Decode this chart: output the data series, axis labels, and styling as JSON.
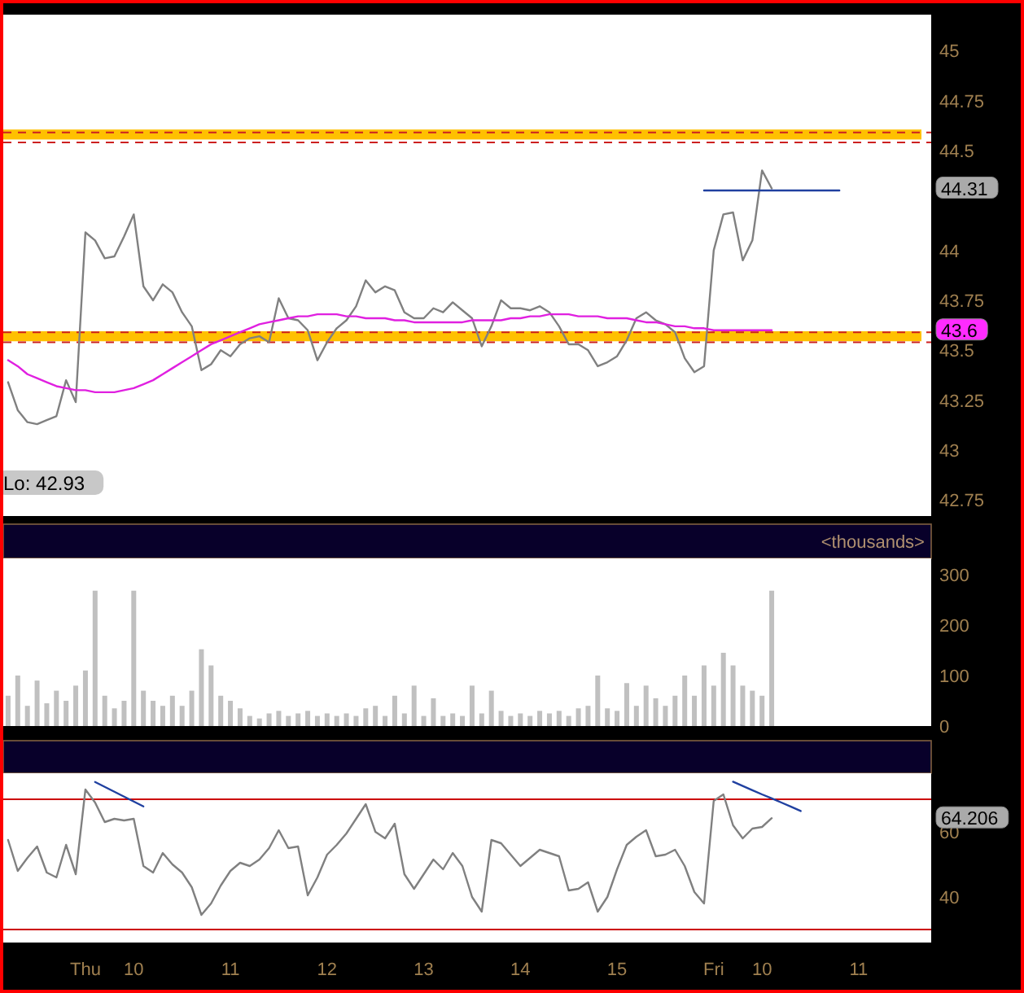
{
  "chart_data": [
    {
      "type": "line",
      "ylim": [
        42.67,
        45.18
      ],
      "tick_labels": "y",
      "categories": [
        null,
        null,
        null,
        null,
        null,
        null,
        null,
        null,
        null,
        null,
        null,
        null,
        null,
        null,
        null,
        null,
        null,
        null,
        null,
        null,
        null,
        null,
        null,
        null,
        null,
        null,
        null,
        null,
        null,
        null,
        null,
        null,
        null,
        null,
        null,
        null,
        null,
        null,
        null,
        null,
        null,
        null,
        null,
        null,
        null,
        null,
        null,
        null,
        null,
        null,
        null,
        null,
        null,
        null,
        null,
        null,
        null,
        null,
        null,
        null,
        null,
        null,
        null,
        null,
        null,
        null,
        null,
        null,
        null,
        null,
        null,
        null,
        null,
        null,
        null,
        null,
        null,
        null,
        null,
        null,
        null,
        null,
        null,
        null,
        null,
        null,
        null,
        null,
        null,
        null,
        null,
        null,
        null,
        null,
        null,
        null
      ],
      "yticks": [
        42.75,
        43,
        43.25,
        43.5,
        43.75,
        44,
        44.5,
        44.75,
        45
      ],
      "series": [
        {
          "color": "#808080",
          "values": [
            43.34,
            43.2,
            43.14,
            43.13,
            43.15,
            43.17,
            43.35,
            43.24,
            44.09,
            44.05,
            43.96,
            43.97,
            44.07,
            44.18,
            43.82,
            43.75,
            43.83,
            43.79,
            43.69,
            43.62,
            43.4,
            43.43,
            43.5,
            43.47,
            43.53,
            43.56,
            43.57,
            43.54,
            43.76,
            43.66,
            43.65,
            43.6,
            43.45,
            43.54,
            43.61,
            43.65,
            43.72,
            43.85,
            43.79,
            43.82,
            43.8,
            43.69,
            43.66,
            43.66,
            43.71,
            43.69,
            43.74,
            43.7,
            43.66,
            43.52,
            43.62,
            43.75,
            43.71,
            43.71,
            43.7,
            43.72,
            43.69,
            43.62,
            43.53,
            43.53,
            43.5,
            43.42,
            43.44,
            43.47,
            43.55,
            43.66,
            43.69,
            43.65,
            43.63,
            43.59,
            43.46,
            43.39,
            43.42,
            44.0,
            44.18,
            44.19,
            43.95,
            44.05,
            44.4,
            44.31,
            null,
            null,
            null,
            null,
            null,
            null,
            null,
            null,
            null,
            null,
            null,
            null,
            null,
            null,
            null,
            null
          ]
        },
        {
          "color": "#e020e0",
          "values": [
            43.45,
            43.42,
            43.38,
            43.36,
            43.34,
            43.32,
            43.31,
            43.3,
            43.3,
            43.29,
            43.29,
            43.29,
            43.3,
            43.31,
            43.33,
            43.35,
            43.38,
            43.41,
            43.44,
            43.47,
            43.5,
            43.53,
            43.55,
            43.57,
            43.59,
            43.61,
            43.63,
            43.64,
            43.65,
            43.66,
            43.67,
            43.67,
            43.68,
            43.68,
            43.68,
            43.67,
            43.67,
            43.66,
            43.66,
            43.66,
            43.65,
            43.65,
            43.64,
            43.64,
            43.64,
            43.64,
            43.64,
            43.64,
            43.65,
            43.65,
            43.65,
            43.65,
            43.66,
            43.66,
            43.67,
            43.67,
            43.68,
            43.68,
            43.68,
            43.67,
            43.67,
            43.67,
            43.66,
            43.66,
            43.66,
            43.65,
            43.64,
            43.64,
            43.63,
            43.62,
            43.62,
            43.61,
            43.61,
            43.6,
            43.6,
            43.6,
            43.6,
            43.6,
            43.6,
            43.6,
            null,
            null,
            null,
            null,
            null,
            null,
            null,
            null,
            null,
            null,
            null,
            null,
            null,
            null,
            null,
            null
          ]
        },
        {
          "color": "#2040a0",
          "values": [
            null,
            null,
            null,
            null,
            null,
            null,
            null,
            null,
            null,
            null,
            null,
            null,
            null,
            null,
            null,
            null,
            null,
            null,
            null,
            null,
            null,
            null,
            null,
            null,
            null,
            null,
            null,
            null,
            null,
            null,
            null,
            null,
            null,
            null,
            null,
            null,
            null,
            null,
            null,
            null,
            null,
            null,
            null,
            null,
            null,
            null,
            null,
            null,
            null,
            null,
            null,
            null,
            null,
            null,
            null,
            null,
            null,
            null,
            null,
            null,
            null,
            null,
            null,
            null,
            null,
            null,
            null,
            null,
            null,
            null,
            null,
            null,
            44.3,
            44.3,
            44.3,
            44.3,
            44.3,
            44.3,
            44.3,
            44.3,
            44.3,
            44.3,
            44.3,
            44.3,
            44.3,
            44.3,
            44.3,
            null,
            null,
            null,
            null,
            null,
            null,
            null,
            null,
            null
          ]
        }
      ],
      "bands": [
        {
          "axis": "y",
          "from": 44.555,
          "to": 44.605,
          "color": "#ffc000"
        },
        {
          "axis": "y",
          "from": 43.545,
          "to": 43.595,
          "color": "#ffc000"
        }
      ],
      "ref_lines": [
        {
          "axis": "y",
          "value": 44.59,
          "color": "#cc2020",
          "line_style": "dashed"
        },
        {
          "axis": "y",
          "value": 44.54,
          "color": "#cc2020",
          "line_style": "dashed"
        },
        {
          "axis": "y",
          "value": 43.59,
          "color": "#cc2020",
          "line_style": "dashed"
        },
        {
          "axis": "y",
          "value": 43.54,
          "color": "#cc2020",
          "line_style": "dashed"
        }
      ],
      "annotations": [
        "44.31",
        "43.6",
        "Lo: 42.93"
      ]
    },
    {
      "type": "bar",
      "ylim": [
        0,
        332
      ],
      "yticks": [
        0,
        100,
        200,
        300
      ],
      "tick_labels": "y",
      "ylabel": "<thousands>",
      "color": "#c0c0c0",
      "categories": [
        null,
        null,
        null,
        null,
        null,
        null,
        null,
        null,
        null,
        null,
        null,
        null,
        null,
        null,
        null,
        null,
        null,
        null,
        null,
        null,
        null,
        null,
        null,
        null,
        null,
        null,
        null,
        null,
        null,
        null,
        null,
        null,
        null,
        null,
        null,
        null,
        null,
        null,
        null,
        null,
        null,
        null,
        null,
        null,
        null,
        null,
        null,
        null,
        null,
        null,
        null,
        null,
        null,
        null,
        null,
        null,
        null,
        null,
        null,
        null,
        null,
        null,
        null,
        null,
        null,
        null,
        null,
        null,
        null,
        null,
        null,
        null,
        null,
        null,
        null,
        null,
        null,
        null,
        null,
        null,
        null,
        null,
        null,
        null,
        null,
        null,
        null,
        null,
        null,
        null,
        null,
        null,
        null,
        null,
        null,
        null
      ],
      "values": [
        60,
        100,
        40,
        90,
        45,
        70,
        50,
        80,
        110,
        268,
        60,
        35,
        50,
        268,
        70,
        50,
        40,
        60,
        40,
        70,
        152,
        120,
        60,
        50,
        35,
        20,
        15,
        25,
        30,
        20,
        25,
        30,
        20,
        25,
        20,
        25,
        20,
        35,
        40,
        20,
        60,
        25,
        80,
        20,
        55,
        20,
        25,
        20,
        80,
        25,
        70,
        30,
        20,
        25,
        20,
        30,
        25,
        30,
        20,
        35,
        40,
        100,
        35,
        30,
        85,
        40,
        80,
        55,
        40,
        60,
        100,
        60,
        120,
        80,
        145,
        120,
        80,
        70,
        60,
        268,
        null,
        null,
        null,
        null,
        null,
        null,
        null,
        null,
        null,
        null,
        null,
        null,
        null,
        null,
        null,
        null
      ]
    },
    {
      "type": "line",
      "ylim": [
        26,
        78
      ],
      "yticks": [
        40,
        60
      ],
      "categories": [
        null,
        null,
        null,
        null,
        null,
        null,
        null,
        null,
        "Thu",
        null,
        null,
        null,
        null,
        "10",
        null,
        null,
        null,
        null,
        null,
        null,
        null,
        null,
        null,
        "11",
        null,
        null,
        null,
        null,
        null,
        null,
        null,
        null,
        null,
        "12",
        null,
        null,
        null,
        null,
        null,
        null,
        null,
        null,
        null,
        "13",
        null,
        null,
        null,
        null,
        null,
        null,
        null,
        null,
        null,
        "14",
        null,
        null,
        null,
        null,
        null,
        null,
        null,
        null,
        null,
        "15",
        null,
        null,
        null,
        null,
        null,
        null,
        null,
        null,
        null,
        "Fri",
        null,
        null,
        null,
        null,
        "10",
        null,
        null,
        null,
        null,
        null,
        null,
        null,
        null,
        null,
        "11",
        null,
        null,
        null,
        null,
        null,
        null,
        null
      ],
      "series": [
        {
          "color": "#808080",
          "values": [
            57.5,
            48,
            52,
            55.5,
            47.5,
            46,
            56,
            47,
            73,
            69,
            63,
            64,
            63.5,
            64,
            49.5,
            47.5,
            53.5,
            50,
            47.5,
            43,
            34.5,
            38,
            43.5,
            48,
            50.5,
            49.5,
            51.5,
            55,
            60.5,
            55,
            55.5,
            40.5,
            46,
            53,
            56,
            59.5,
            64,
            68.5,
            60,
            58,
            62.5,
            47,
            42.5,
            47,
            51.5,
            48.5,
            53.5,
            49.5,
            40,
            35.5,
            57.5,
            56.5,
            53,
            49.5,
            52,
            54.5,
            53.5,
            52.5,
            42,
            42.5,
            44.5,
            35.5,
            40,
            48.5,
            56,
            58.5,
            60.5,
            52.5,
            53,
            54.5,
            49.5,
            41.5,
            38,
            69.5,
            71.5,
            62,
            58,
            61,
            61.5,
            64.2,
            null,
            null,
            null,
            null,
            null,
            null,
            null,
            null,
            null,
            null,
            null,
            null,
            null,
            null,
            null,
            null
          ]
        },
        {
          "color": "#2040a0",
          "values": [
            null,
            null,
            null,
            null,
            null,
            null,
            null,
            null,
            null,
            75.3,
            73.8,
            72.3,
            70.8,
            69.3,
            67.8,
            null,
            null,
            null,
            null,
            null,
            null,
            null,
            null,
            null,
            null,
            null,
            null,
            null,
            null,
            null,
            null,
            null,
            null,
            null,
            null,
            null,
            null,
            null,
            null,
            null,
            null,
            null,
            null,
            null,
            null,
            null,
            null,
            null,
            null,
            null,
            null,
            null,
            null,
            null,
            null,
            null,
            null,
            null,
            null,
            null,
            null,
            null,
            null,
            null,
            null,
            null,
            null,
            null,
            null,
            null,
            null,
            null,
            null,
            null,
            null,
            null,
            null,
            null,
            null,
            null,
            null,
            null,
            null,
            null,
            null,
            null,
            null,
            null,
            null,
            null,
            null,
            null,
            null,
            null,
            null,
            null
          ]
        },
        {
          "color": "#2040a0",
          "values": [
            null,
            null,
            null,
            null,
            null,
            null,
            null,
            null,
            null,
            null,
            null,
            null,
            null,
            null,
            null,
            null,
            null,
            null,
            null,
            null,
            null,
            null,
            null,
            null,
            null,
            null,
            null,
            null,
            null,
            null,
            null,
            null,
            null,
            null,
            null,
            null,
            null,
            null,
            null,
            null,
            null,
            null,
            null,
            null,
            null,
            null,
            null,
            null,
            null,
            null,
            null,
            null,
            null,
            null,
            null,
            null,
            null,
            null,
            null,
            null,
            null,
            null,
            null,
            null,
            null,
            null,
            null,
            null,
            null,
            null,
            null,
            null,
            null,
            null,
            null,
            75.4,
            74.1,
            72.8,
            71.5,
            70.3,
            69,
            67.7,
            66.4,
            null,
            null,
            null,
            null,
            null,
            null,
            null,
            null,
            null,
            null,
            null,
            null,
            null
          ]
        }
      ],
      "ref_lines": [
        {
          "axis": "y",
          "value": 70,
          "color": "#cc0000",
          "line_style": "solid"
        },
        {
          "axis": "y",
          "value": 30,
          "color": "#cc0000",
          "line_style": "solid"
        }
      ],
      "annotations": [
        "64.206"
      ]
    }
  ]
}
